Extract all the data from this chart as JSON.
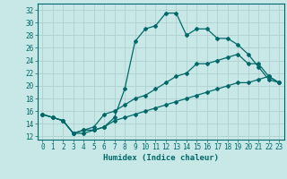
{
  "xlabel": "Humidex (Indice chaleur)",
  "bg_color": "#c8e8e8",
  "grid_color": "#b0d0d0",
  "line_color": "#006868",
  "xlim": [
    -0.5,
    23.5
  ],
  "ylim": [
    11.5,
    33.0
  ],
  "yticks": [
    12,
    14,
    16,
    18,
    20,
    22,
    24,
    26,
    28,
    30,
    32
  ],
  "xticks": [
    0,
    1,
    2,
    3,
    4,
    5,
    6,
    7,
    8,
    9,
    10,
    11,
    12,
    13,
    14,
    15,
    16,
    17,
    18,
    19,
    20,
    21,
    22,
    23
  ],
  "line1_x": [
    0,
    1,
    2,
    3,
    4,
    5,
    6,
    7,
    8,
    9,
    10,
    11,
    12,
    13,
    14,
    15,
    16,
    17,
    18,
    19,
    20,
    21,
    22,
    23
  ],
  "line1_y": [
    15.5,
    15.0,
    14.5,
    12.5,
    12.5,
    13.0,
    13.5,
    15.0,
    19.5,
    27.0,
    29.0,
    29.5,
    31.5,
    31.5,
    28.0,
    29.0,
    29.0,
    27.5,
    27.5,
    26.5,
    25.0,
    23.0,
    21.0,
    20.5
  ],
  "line2_x": [
    0,
    1,
    2,
    3,
    4,
    5,
    6,
    7,
    8,
    9,
    10,
    11,
    12,
    13,
    14,
    15,
    16,
    17,
    18,
    19,
    20,
    21,
    22,
    23
  ],
  "line2_y": [
    15.5,
    15.0,
    14.5,
    12.5,
    13.0,
    13.5,
    15.5,
    16.0,
    17.0,
    18.0,
    18.5,
    19.5,
    20.5,
    21.5,
    22.0,
    23.5,
    23.5,
    24.0,
    24.5,
    25.0,
    23.5,
    23.5,
    21.5,
    20.5
  ],
  "line3_x": [
    0,
    1,
    2,
    3,
    4,
    5,
    6,
    7,
    8,
    9,
    10,
    11,
    12,
    13,
    14,
    15,
    16,
    17,
    18,
    19,
    20,
    21,
    22,
    23
  ],
  "line3_y": [
    15.5,
    15.0,
    14.5,
    12.5,
    13.0,
    13.0,
    13.5,
    14.5,
    15.0,
    15.5,
    16.0,
    16.5,
    17.0,
    17.5,
    18.0,
    18.5,
    19.0,
    19.5,
    20.0,
    20.5,
    20.5,
    21.0,
    21.5,
    20.5
  ],
  "xlabel_fontsize": 6.5,
  "tick_fontsize": 5.5,
  "marker_size": 2.0,
  "line_width": 0.9
}
